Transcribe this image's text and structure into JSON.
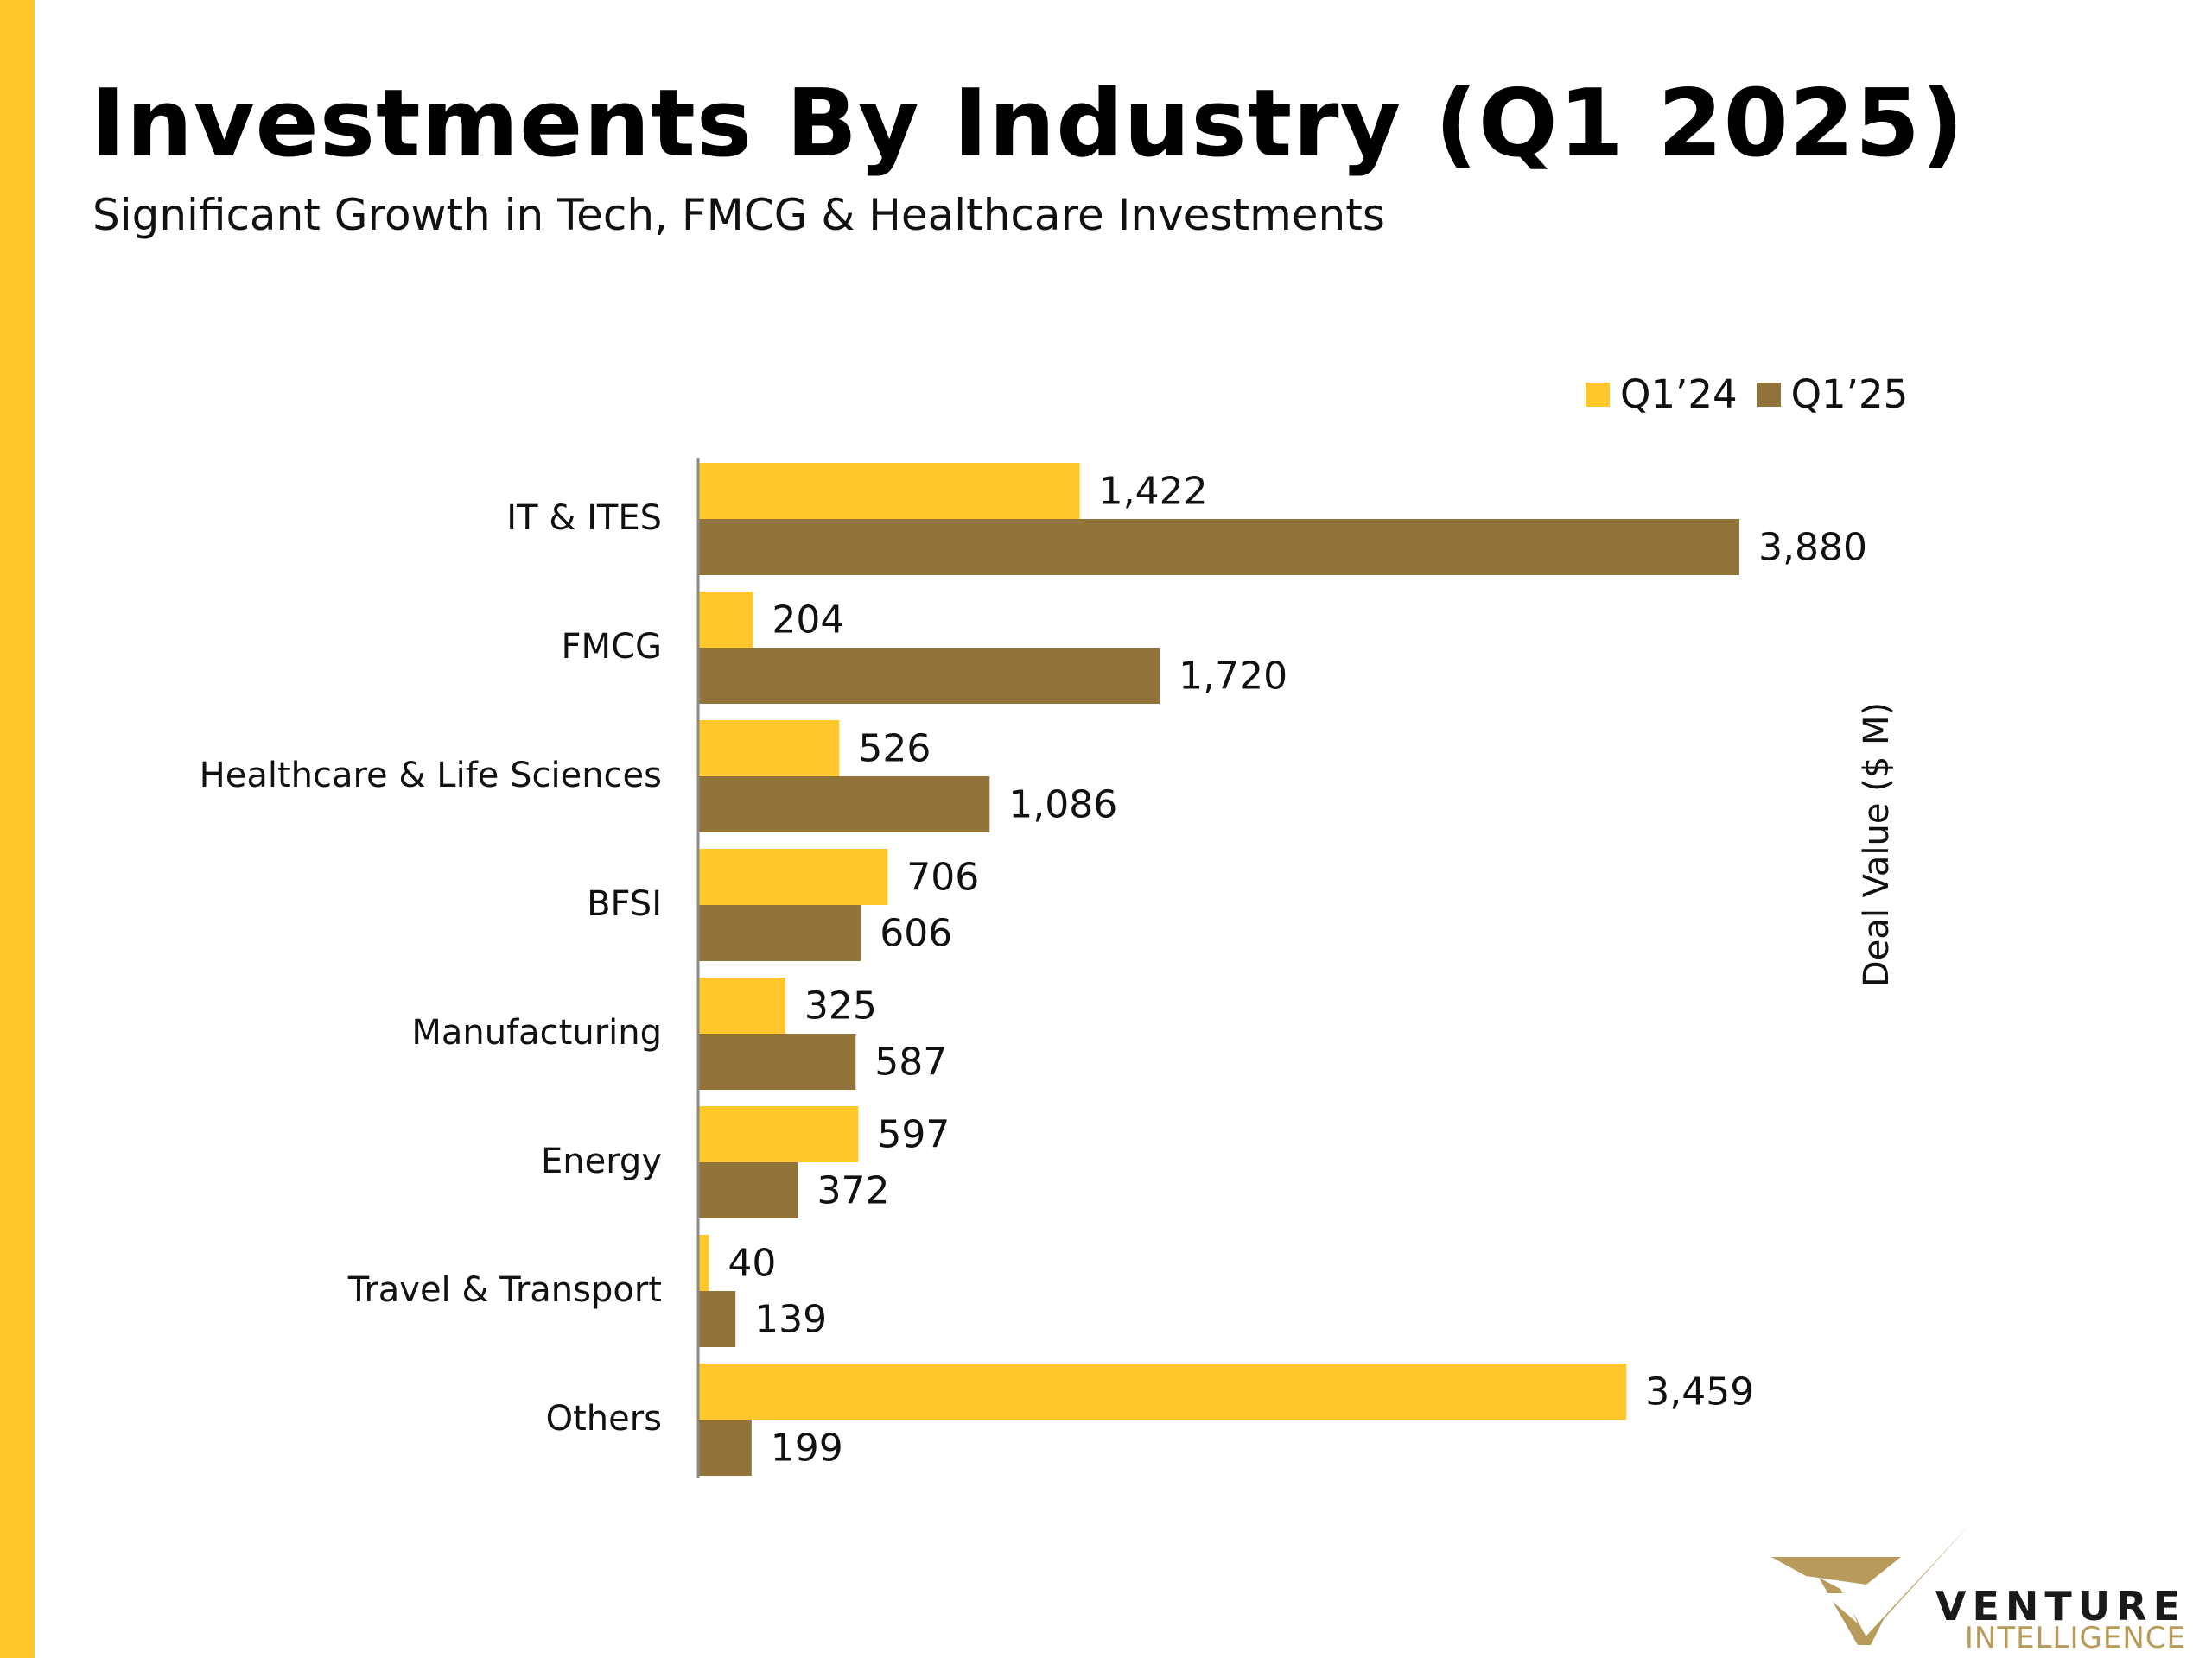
{
  "title": "Investments By Industry (Q1 2025)",
  "subtitle": "Significant Growth in Tech, FMCG & Healthcare Investments",
  "colors": {
    "accent": "#FFC72C",
    "q124": "#FFC72C",
    "q125": "#92733A",
    "logo_gold": "#B89A5A"
  },
  "chart_data": {
    "type": "bar",
    "orientation": "horizontal",
    "categories": [
      "IT & ITES",
      "FMCG",
      "Healthcare & Life Sciences",
      "BFSI",
      "Manufacturing",
      "Energy",
      "Travel & Transport",
      "Others"
    ],
    "series": [
      {
        "name": "Q1’24",
        "values": [
          1422,
          204,
          526,
          706,
          325,
          597,
          40,
          3459
        ],
        "labels": [
          "1,422",
          "204",
          "526",
          "706",
          "325",
          "597",
          "40",
          "3,459"
        ]
      },
      {
        "name": "Q1’25",
        "values": [
          3880,
          1720,
          1086,
          606,
          587,
          372,
          139,
          199
        ],
        "labels": [
          "3,880",
          "1,720",
          "1,086",
          "606",
          "587",
          "372",
          "139",
          "199"
        ]
      }
    ],
    "value_axis_label": "Deal Value ($ M)",
    "xlim": [
      0,
      3880
    ],
    "grid": false,
    "legend_position": "top-right"
  },
  "logo": {
    "word1": "VENTURE",
    "word2": "INTELLIGENCE"
  }
}
